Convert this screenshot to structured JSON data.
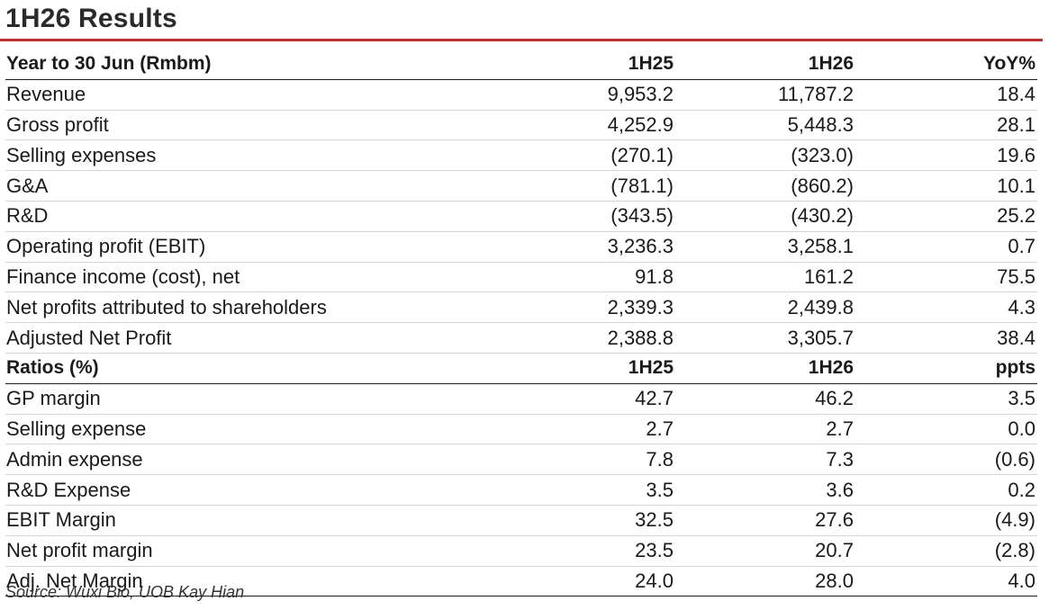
{
  "title": "1H26 Results",
  "header": {
    "label": "Year to 30 Jun (Rmbm)",
    "c1": "1H25",
    "c2": "1H26",
    "c3": "YoY%"
  },
  "rows": [
    {
      "label": "Revenue",
      "c1": "9,953.2",
      "c2": "11,787.2",
      "c3": "18.4"
    },
    {
      "label": "Gross profit",
      "c1": "4,252.9",
      "c2": "5,448.3",
      "c3": "28.1"
    },
    {
      "label": "Selling expenses",
      "c1": "(270.1)",
      "c2": "(323.0)",
      "c3": "19.6"
    },
    {
      "label": "G&A",
      "c1": "(781.1)",
      "c2": "(860.2)",
      "c3": "10.1"
    },
    {
      "label": "R&D",
      "c1": "(343.5)",
      "c2": "(430.2)",
      "c3": "25.2"
    },
    {
      "label": "Operating profit (EBIT)",
      "c1": "3,236.3",
      "c2": "3,258.1",
      "c3": "0.7"
    },
    {
      "label": "Finance income (cost), net",
      "c1": "91.8",
      "c2": "161.2",
      "c3": "75.5"
    },
    {
      "label": "Net profits attributed to shareholders",
      "c1": "2,339.3",
      "c2": "2,439.8",
      "c3": "4.3"
    },
    {
      "label": "Adjusted Net Profit",
      "c1": "2,388.8",
      "c2": "3,305.7",
      "c3": "38.4"
    }
  ],
  "ratios_header": {
    "label": "Ratios (%)",
    "c1": "1H25",
    "c2": "1H26",
    "c3": "ppts"
  },
  "ratios": [
    {
      "label": "GP margin",
      "c1": "42.7",
      "c2": "46.2",
      "c3": "3.5"
    },
    {
      "label": "Selling expense",
      "c1": "2.7",
      "c2": "2.7",
      "c3": "0.0"
    },
    {
      "label": "Admin expense",
      "c1": "7.8",
      "c2": "7.3",
      "c3": "(0.6)"
    },
    {
      "label": "R&D Expense",
      "c1": "3.5",
      "c2": "3.6",
      "c3": "0.2"
    },
    {
      "label": "EBIT Margin",
      "c1": "32.5",
      "c2": "27.6",
      "c3": "(4.9)"
    },
    {
      "label": "Net profit margin",
      "c1": "23.5",
      "c2": "20.7",
      "c3": "(2.8)"
    },
    {
      "label": "Adj. Net Margin",
      "c1": "24.0",
      "c2": "28.0",
      "c3": "4.0"
    }
  ],
  "source": "Source: Wuxi Bio, UOB Kay Hian",
  "colors": {
    "accent_rule": "#c0302f"
  }
}
